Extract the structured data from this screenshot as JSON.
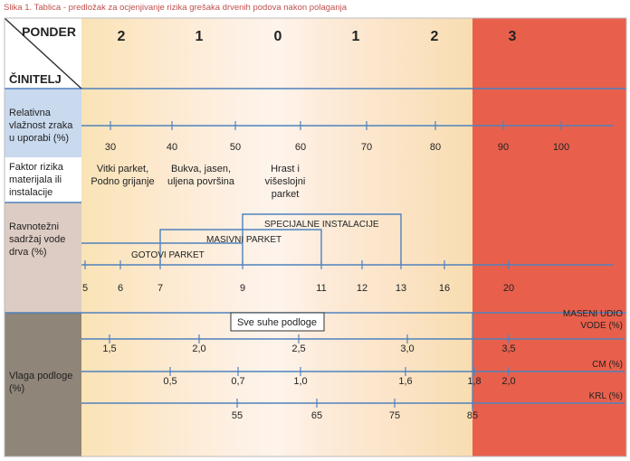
{
  "caption": "Slika 1. Tablica - predložak za ocjenjivanje rizika grešaka drvenih podova nakon polaganja",
  "header": {
    "ponder_label": "PONDER",
    "cinitelj_label": "ČINITELJ",
    "ponders": [
      "2",
      "1",
      "0",
      "1",
      "2",
      "3"
    ]
  },
  "rows": {
    "humidity": {
      "label": "Relativna vlažnost zraka u uporabi (%)",
      "ticks": [
        "30",
        "40",
        "50",
        "60",
        "70",
        "80",
        "90",
        "100"
      ]
    },
    "risk": {
      "label": "Faktor rizika materijala ili instalacije",
      "notes": [
        "Vitki parket, Podno grijanje",
        "Bukva, jasen, uljena površina",
        "Hrast i višeslojni parket"
      ]
    },
    "equilibrium": {
      "label": "Ravnotežni sadržaj vode drva (%)",
      "brackets": [
        "SPECIJALNE INSTALACIJE",
        "MASIVNI PARKET",
        "GOTOVI PARKET"
      ],
      "ticks": [
        "5",
        "6",
        "7",
        "9",
        "11",
        "12",
        "13",
        "16",
        "20"
      ]
    },
    "moisture": {
      "label": "Vlaga podloge (%)",
      "box_label": "Sve suhe podloge",
      "maseni_label": "MASENI UDIO VODE (%)",
      "maseni_ticks": [
        "1,5",
        "2,0",
        "2,5",
        "3,0",
        "3,5"
      ],
      "cm_label": "CM (%)",
      "cm_ticks": [
        "0,5",
        "0,7",
        "1,0",
        "1,6",
        "1,8",
        "2,0"
      ],
      "krl_label": "KRL (%)",
      "krl_ticks": [
        "55",
        "65",
        "75",
        "85"
      ]
    }
  },
  "colors": {
    "line": "#4f81bd",
    "red_zone": "#e8604c",
    "label_col": "#f4f4f4",
    "humidity_bg": "#c9d9ee",
    "equilibrium_bg": "#ddccc3",
    "moisture_bg": "#8f8578"
  }
}
